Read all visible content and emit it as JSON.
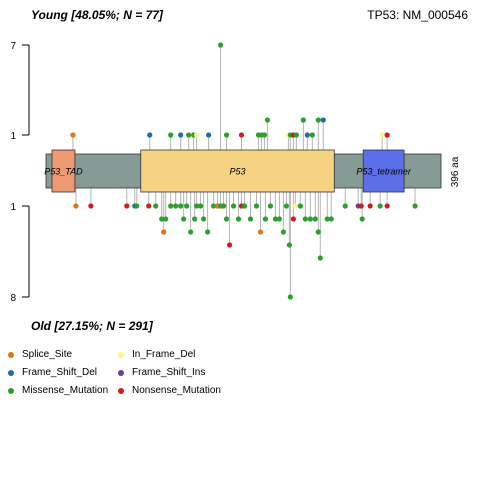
{
  "header": {
    "top_title": "Young [48.05%; N = 77]",
    "gene": "TP53: NM_000546",
    "bottom_title": "Old [27.15%; N = 291]"
  },
  "legend": [
    {
      "label": "Splice_Site",
      "color": "#e8730e"
    },
    {
      "label": "In_Frame_Del",
      "color": "#fbf68a"
    },
    {
      "label": "Frame_Shift_Del",
      "color": "#1f6ea8"
    },
    {
      "label": "Frame_Shift_Ins",
      "color": "#6a3d9a"
    },
    {
      "label": "Missense_Mutation",
      "color": "#2ca02c"
    },
    {
      "label": "Nonsense_Mutation",
      "color": "#d7191c"
    }
  ],
  "chart_data": {
    "type": "lollipop",
    "protein_length_label": "396 aa",
    "protein_length": 396,
    "x_range": [
      0,
      396
    ],
    "top_axis": {
      "ticks": [
        "1",
        "7"
      ],
      "range": [
        1,
        7
      ]
    },
    "bottom_axis": {
      "ticks": [
        "1",
        "8"
      ],
      "range": [
        1,
        8
      ]
    },
    "backbone_color": "#869a96",
    "domains": [
      {
        "name": "P53_TAD",
        "start": 6,
        "end": 29,
        "color": "#ef9973"
      },
      {
        "name": "P53",
        "start": 95,
        "end": 289,
        "color": "#f5d383"
      },
      {
        "name": "P53_tetramer",
        "start": 318,
        "end": 359,
        "color": "#5b6fe8"
      }
    ],
    "top_mutations": [
      {
        "pos": 27,
        "count": 1,
        "type": "Splice_Site"
      },
      {
        "pos": 104,
        "count": 1,
        "type": "Frame_Shift_Del"
      },
      {
        "pos": 125,
        "count": 1,
        "type": "Missense_Mutation"
      },
      {
        "pos": 135,
        "count": 1,
        "type": "Frame_Shift_Del"
      },
      {
        "pos": 143,
        "count": 1,
        "type": "Missense_Mutation"
      },
      {
        "pos": 148,
        "count": 1,
        "type": "Missense_Mutation"
      },
      {
        "pos": 151,
        "count": 1,
        "type": "In_Frame_Del"
      },
      {
        "pos": 163,
        "count": 1,
        "type": "Frame_Shift_Del"
      },
      {
        "pos": 175,
        "count": 7,
        "type": "Missense_Mutation"
      },
      {
        "pos": 181,
        "count": 1,
        "type": "Missense_Mutation"
      },
      {
        "pos": 196,
        "count": 1,
        "type": "Nonsense_Mutation"
      },
      {
        "pos": 213,
        "count": 1,
        "type": "Missense_Mutation"
      },
      {
        "pos": 216,
        "count": 1,
        "type": "Missense_Mutation"
      },
      {
        "pos": 219,
        "count": 1,
        "type": "Missense_Mutation"
      },
      {
        "pos": 222,
        "count": 2,
        "type": "Missense_Mutation"
      },
      {
        "pos": 243,
        "count": 1,
        "type": "In_Frame_Del"
      },
      {
        "pos": 245,
        "count": 1,
        "type": "Missense_Mutation"
      },
      {
        "pos": 248,
        "count": 1,
        "type": "Nonsense_Mutation"
      },
      {
        "pos": 251,
        "count": 1,
        "type": "Missense_Mutation"
      },
      {
        "pos": 258,
        "count": 2,
        "type": "Missense_Mutation"
      },
      {
        "pos": 262,
        "count": 1,
        "type": "Frame_Shift_Del"
      },
      {
        "pos": 267,
        "count": 1,
        "type": "Missense_Mutation"
      },
      {
        "pos": 273,
        "count": 2,
        "type": "Missense_Mutation"
      },
      {
        "pos": 278,
        "count": 2,
        "type": "Frame_Shift_Del"
      },
      {
        "pos": 337,
        "count": 1,
        "type": "In_Frame_Del"
      },
      {
        "pos": 342,
        "count": 1,
        "type": "Nonsense_Mutation"
      }
    ],
    "bottom_mutations": [
      {
        "pos": 30,
        "count": 1,
        "type": "Splice_Site"
      },
      {
        "pos": 45,
        "count": 1,
        "type": "Nonsense_Mutation"
      },
      {
        "pos": 81,
        "count": 1,
        "type": "Nonsense_Mutation"
      },
      {
        "pos": 89,
        "count": 1,
        "type": "Frame_Shift_Del"
      },
      {
        "pos": 91,
        "count": 1,
        "type": "Missense_Mutation"
      },
      {
        "pos": 103,
        "count": 1,
        "type": "Nonsense_Mutation"
      },
      {
        "pos": 110,
        "count": 1,
        "type": "Missense_Mutation"
      },
      {
        "pos": 116,
        "count": 2,
        "type": "Missense_Mutation"
      },
      {
        "pos": 118,
        "count": 3,
        "type": "Splice_Site"
      },
      {
        "pos": 120,
        "count": 2,
        "type": "Missense_Mutation"
      },
      {
        "pos": 125,
        "count": 1,
        "type": "Missense_Mutation"
      },
      {
        "pos": 130,
        "count": 1,
        "type": "Missense_Mutation"
      },
      {
        "pos": 135,
        "count": 1,
        "type": "Missense_Mutation"
      },
      {
        "pos": 138,
        "count": 2,
        "type": "Missense_Mutation"
      },
      {
        "pos": 141,
        "count": 1,
        "type": "Missense_Mutation"
      },
      {
        "pos": 145,
        "count": 3,
        "type": "Missense_Mutation"
      },
      {
        "pos": 149,
        "count": 2,
        "type": "Missense_Mutation"
      },
      {
        "pos": 151,
        "count": 1,
        "type": "Missense_Mutation"
      },
      {
        "pos": 155,
        "count": 1,
        "type": "Missense_Mutation"
      },
      {
        "pos": 158,
        "count": 2,
        "type": "Missense_Mutation"
      },
      {
        "pos": 162,
        "count": 3,
        "type": "Missense_Mutation"
      },
      {
        "pos": 168,
        "count": 1,
        "type": "Missense_Mutation"
      },
      {
        "pos": 172,
        "count": 1,
        "type": "Splice_Site"
      },
      {
        "pos": 175,
        "count": 1,
        "type": "Missense_Mutation"
      },
      {
        "pos": 178,
        "count": 1,
        "type": "Missense_Mutation"
      },
      {
        "pos": 181,
        "count": 2,
        "type": "Missense_Mutation"
      },
      {
        "pos": 184,
        "count": 4,
        "type": "Nonsense_Mutation"
      },
      {
        "pos": 188,
        "count": 1,
        "type": "Missense_Mutation"
      },
      {
        "pos": 193,
        "count": 2,
        "type": "Missense_Mutation"
      },
      {
        "pos": 196,
        "count": 1,
        "type": "Nonsense_Mutation"
      },
      {
        "pos": 199,
        "count": 1,
        "type": "Missense_Mutation"
      },
      {
        "pos": 205,
        "count": 2,
        "type": "Missense_Mutation"
      },
      {
        "pos": 211,
        "count": 1,
        "type": "Missense_Mutation"
      },
      {
        "pos": 215,
        "count": 3,
        "type": "Splice_Site"
      },
      {
        "pos": 220,
        "count": 2,
        "type": "Missense_Mutation"
      },
      {
        "pos": 225,
        "count": 1,
        "type": "Missense_Mutation"
      },
      {
        "pos": 230,
        "count": 2,
        "type": "Missense_Mutation"
      },
      {
        "pos": 234,
        "count": 2,
        "type": "Missense_Mutation"
      },
      {
        "pos": 238,
        "count": 3,
        "type": "Missense_Mutation"
      },
      {
        "pos": 241,
        "count": 1,
        "type": "Missense_Mutation"
      },
      {
        "pos": 244,
        "count": 4,
        "type": "Missense_Mutation"
      },
      {
        "pos": 245,
        "count": 8,
        "type": "Missense_Mutation"
      },
      {
        "pos": 248,
        "count": 2,
        "type": "Nonsense_Mutation"
      },
      {
        "pos": 250,
        "count": 1,
        "type": "In_Frame_Del"
      },
      {
        "pos": 255,
        "count": 1,
        "type": "Missense_Mutation"
      },
      {
        "pos": 260,
        "count": 2,
        "type": "Missense_Mutation"
      },
      {
        "pos": 265,
        "count": 2,
        "type": "Missense_Mutation"
      },
      {
        "pos": 270,
        "count": 2,
        "type": "Missense_Mutation"
      },
      {
        "pos": 273,
        "count": 3,
        "type": "Missense_Mutation"
      },
      {
        "pos": 275,
        "count": 5,
        "type": "Missense_Mutation"
      },
      {
        "pos": 282,
        "count": 2,
        "type": "Missense_Mutation"
      },
      {
        "pos": 286,
        "count": 2,
        "type": "Missense_Mutation"
      },
      {
        "pos": 300,
        "count": 1,
        "type": "Missense_Mutation"
      },
      {
        "pos": 313,
        "count": 1,
        "type": "Frame_Shift_Ins"
      },
      {
        "pos": 316,
        "count": 1,
        "type": "Nonsense_Mutation"
      },
      {
        "pos": 317,
        "count": 2,
        "type": "Missense_Mutation"
      },
      {
        "pos": 325,
        "count": 1,
        "type": "Nonsense_Mutation"
      },
      {
        "pos": 335,
        "count": 1,
        "type": "Missense_Mutation"
      },
      {
        "pos": 342,
        "count": 1,
        "type": "Nonsense_Mutation"
      },
      {
        "pos": 370,
        "count": 1,
        "type": "Missense_Mutation"
      }
    ]
  }
}
